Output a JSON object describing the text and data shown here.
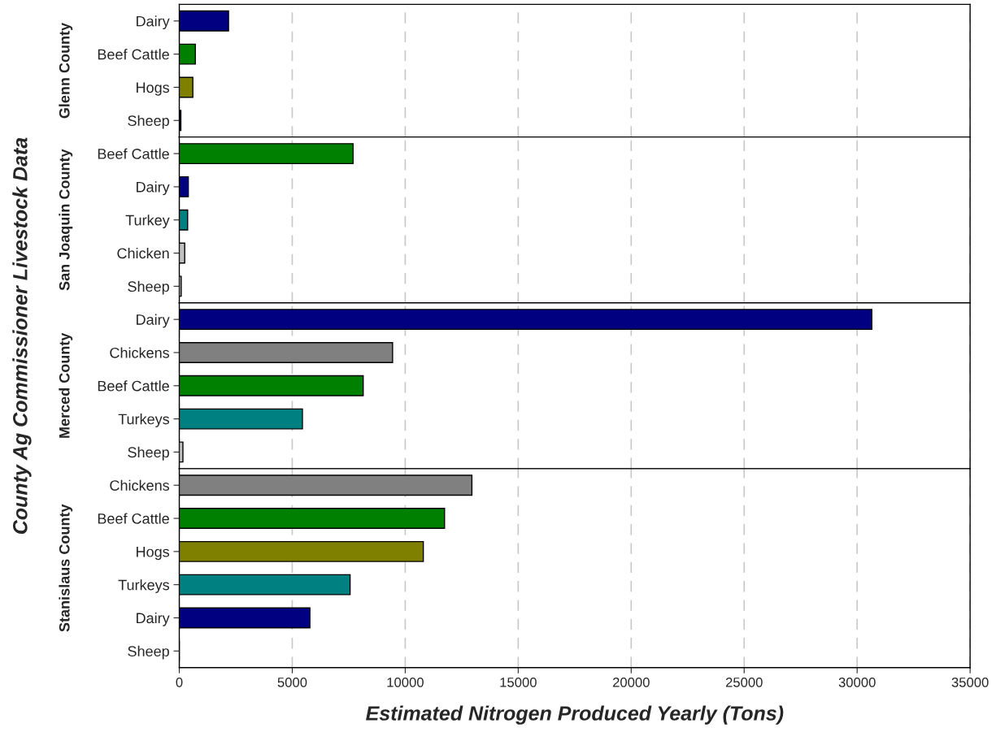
{
  "chart_data": [
    {
      "type": "bar",
      "orientation": "horizontal",
      "ylabel": "Glenn County",
      "annotations": [
        "County Ag Commissioner Livestock Data"
      ],
      "categories": [
        "Dairy",
        "Beef Cattle",
        "Hogs",
        "Sheep"
      ],
      "values": [
        2180,
        710,
        600,
        70
      ],
      "colors": [
        "#000080",
        "#008000",
        "#808000",
        "#000080"
      ],
      "xlim": [
        0,
        35000
      ],
      "xticks": [
        0,
        5000,
        10000,
        15000,
        20000,
        25000,
        30000,
        35000
      ],
      "grid": "x",
      "tick_labels": "y"
    },
    {
      "type": "bar",
      "orientation": "horizontal",
      "ylabel": "San Joaquin County",
      "categories": [
        "Beef Cattle",
        "Dairy",
        "Turkey",
        "Chicken",
        "Sheep"
      ],
      "values": [
        7690,
        400,
        370,
        240,
        85
      ],
      "colors": [
        "#008000",
        "#000080",
        "#008080",
        "#c0c0c0",
        "#c0c0c0"
      ],
      "xlim": [
        0,
        35000
      ],
      "xticks": [
        0,
        5000,
        10000,
        15000,
        20000,
        25000,
        30000,
        35000
      ],
      "grid": "x",
      "tick_labels": "y"
    },
    {
      "type": "bar",
      "orientation": "horizontal",
      "ylabel": "Merced County",
      "categories": [
        "Dairy",
        "Chickens",
        "Beef Cattle",
        "Turkeys",
        "Sheep"
      ],
      "values": [
        30650,
        9440,
        8140,
        5450,
        160
      ],
      "colors": [
        "#000080",
        "#808080",
        "#008000",
        "#008080",
        "#c0c0c0"
      ],
      "xlim": [
        0,
        35000
      ],
      "xticks": [
        0,
        5000,
        10000,
        15000,
        20000,
        25000,
        30000,
        35000
      ],
      "grid": "x",
      "tick_labels": "y"
    },
    {
      "type": "bar",
      "orientation": "horizontal",
      "ylabel": "Stanislaus County",
      "xlabel": "Estimated Nitrogen Produced Yearly (Tons)",
      "categories": [
        "Chickens",
        "Beef Cattle",
        "Hogs",
        "Turkeys",
        "Dairy",
        "Sheep"
      ],
      "values": [
        12950,
        11740,
        10800,
        7560,
        5780,
        0
      ],
      "colors": [
        "#808080",
        "#008000",
        "#808000",
        "#008080",
        "#000080",
        "#c0c0c0"
      ],
      "xlim": [
        0,
        35000
      ],
      "xticks": [
        0,
        5000,
        10000,
        15000,
        20000,
        25000,
        30000,
        35000
      ],
      "grid": "x"
    }
  ]
}
